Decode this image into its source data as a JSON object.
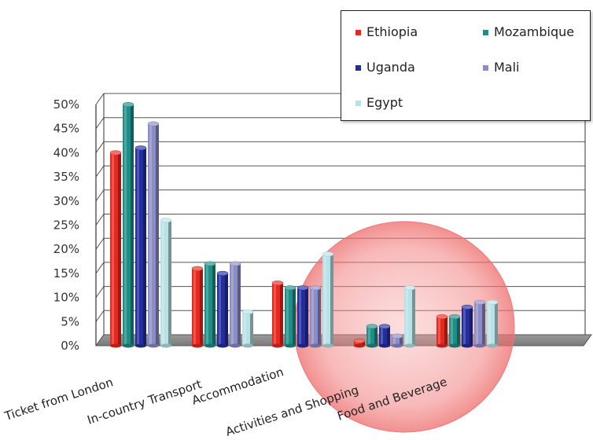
{
  "chart_data": {
    "type": "bar",
    "title": "",
    "xlabel": "",
    "ylabel": "",
    "categories": [
      "Ticket from London",
      "In-country Transport",
      "Accommodation",
      "Activities and Shopping",
      "Food and Beverage"
    ],
    "series": [
      {
        "name": "Ethiopia",
        "color": "#e8281e",
        "values": [
          40,
          16,
          13,
          1,
          6
        ]
      },
      {
        "name": "Mozambique",
        "color": "#1e8e86",
        "values": [
          50,
          17,
          12,
          4,
          6
        ]
      },
      {
        "name": "Uganda",
        "color": "#232e9e",
        "values": [
          41,
          15,
          12,
          4,
          8
        ]
      },
      {
        "name": "Mali",
        "color": "#8c8cc6",
        "values": [
          46,
          17,
          12,
          2,
          9
        ]
      },
      {
        "name": "Egypt",
        "color": "#b8e2e6",
        "values": [
          26,
          7,
          19,
          12,
          9
        ]
      }
    ],
    "yticks": [
      "0%",
      "5%",
      "10%",
      "15%",
      "20%",
      "25%",
      "30%",
      "35%",
      "40%",
      "45%",
      "50%"
    ],
    "ylim": [
      0,
      50
    ],
    "grid": true,
    "legend_position": "top-right",
    "highlight": {
      "shape": "ellipse",
      "color": "#f26b6b",
      "covers": [
        "Activities and Shopping",
        "Food and Beverage"
      ]
    }
  }
}
